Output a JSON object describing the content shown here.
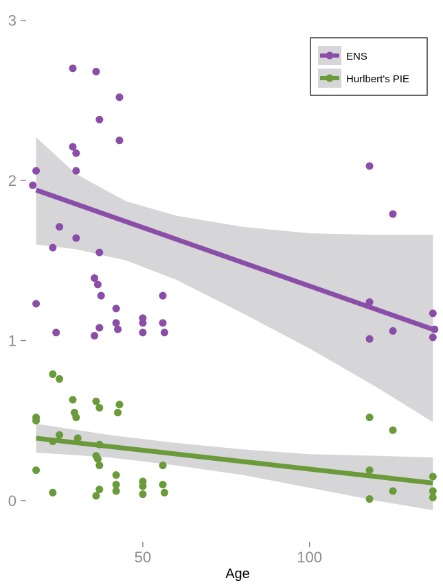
{
  "chart_data": {
    "type": "scatter",
    "xlabel": "Age",
    "ylabel": "",
    "xlim": [
      15,
      139
    ],
    "ylim": [
      -0.3,
      3.05
    ],
    "x_ticks": [
      50,
      100
    ],
    "y_ticks": [
      0,
      1,
      2,
      3
    ],
    "grid": false,
    "legend_position": "top-right",
    "series": [
      {
        "name": "ENS",
        "color": "#8a4ea8",
        "points": [
          {
            "x": 17,
            "y": 1.97
          },
          {
            "x": 18,
            "y": 2.06
          },
          {
            "x": 18,
            "y": 1.23
          },
          {
            "x": 23,
            "y": 1.58
          },
          {
            "x": 24,
            "y": 1.05
          },
          {
            "x": 25,
            "y": 1.71
          },
          {
            "x": 29,
            "y": 2.7
          },
          {
            "x": 29,
            "y": 2.21
          },
          {
            "x": 30,
            "y": 2.17
          },
          {
            "x": 30,
            "y": 1.64
          },
          {
            "x": 30,
            "y": 2.06
          },
          {
            "x": 36,
            "y": 2.68
          },
          {
            "x": 37,
            "y": 2.38
          },
          {
            "x": 37,
            "y": 1.55
          },
          {
            "x": 35.5,
            "y": 1.39
          },
          {
            "x": 36.5,
            "y": 1.35
          },
          {
            "x": 37.5,
            "y": 1.28
          },
          {
            "x": 37,
            "y": 1.08
          },
          {
            "x": 35.5,
            "y": 1.03
          },
          {
            "x": 43,
            "y": 2.52
          },
          {
            "x": 43,
            "y": 2.25
          },
          {
            "x": 42,
            "y": 1.2
          },
          {
            "x": 42,
            "y": 1.11
          },
          {
            "x": 42.5,
            "y": 1.07
          },
          {
            "x": 50,
            "y": 1.14
          },
          {
            "x": 50,
            "y": 1.11
          },
          {
            "x": 50,
            "y": 1.05
          },
          {
            "x": 56,
            "y": 1.28
          },
          {
            "x": 56,
            "y": 1.11
          },
          {
            "x": 56.5,
            "y": 1.05
          },
          {
            "x": 118,
            "y": 2.09
          },
          {
            "x": 118,
            "y": 1.24
          },
          {
            "x": 118,
            "y": 1.01
          },
          {
            "x": 125,
            "y": 1.79
          },
          {
            "x": 125,
            "y": 1.06
          },
          {
            "x": 137,
            "y": 1.17
          },
          {
            "x": 137.5,
            "y": 1.07
          },
          {
            "x": 137,
            "y": 1.02
          }
        ],
        "fit": {
          "x": [
            18,
            137
          ],
          "y": [
            1.94,
            1.07
          ]
        },
        "ci_upper": [
          {
            "x": 18,
            "y": 2.27
          },
          {
            "x": 30,
            "y": 2.04
          },
          {
            "x": 45,
            "y": 1.87
          },
          {
            "x": 60,
            "y": 1.78
          },
          {
            "x": 80,
            "y": 1.71
          },
          {
            "x": 100,
            "y": 1.67
          },
          {
            "x": 120,
            "y": 1.66
          },
          {
            "x": 137,
            "y": 1.66
          }
        ],
        "ci_lower": [
          {
            "x": 18,
            "y": 1.6
          },
          {
            "x": 30,
            "y": 1.57
          },
          {
            "x": 45,
            "y": 1.5
          },
          {
            "x": 60,
            "y": 1.38
          },
          {
            "x": 80,
            "y": 1.17
          },
          {
            "x": 100,
            "y": 0.95
          },
          {
            "x": 120,
            "y": 0.71
          },
          {
            "x": 137,
            "y": 0.49
          }
        ]
      },
      {
        "name": "Hurlbert's PIE",
        "color": "#6a9a3a",
        "points": [
          {
            "x": 18,
            "y": 0.52
          },
          {
            "x": 18,
            "y": 0.5
          },
          {
            "x": 18,
            "y": 0.19
          },
          {
            "x": 23,
            "y": 0.79
          },
          {
            "x": 23,
            "y": 0.37
          },
          {
            "x": 23,
            "y": 0.05
          },
          {
            "x": 25,
            "y": 0.76
          },
          {
            "x": 25,
            "y": 0.41
          },
          {
            "x": 29,
            "y": 0.63
          },
          {
            "x": 29.5,
            "y": 0.55
          },
          {
            "x": 30,
            "y": 0.52
          },
          {
            "x": 30.5,
            "y": 0.39
          },
          {
            "x": 36,
            "y": 0.62
          },
          {
            "x": 37,
            "y": 0.58
          },
          {
            "x": 37,
            "y": 0.35
          },
          {
            "x": 36,
            "y": 0.28
          },
          {
            "x": 36.5,
            "y": 0.26
          },
          {
            "x": 37,
            "y": 0.22
          },
          {
            "x": 37,
            "y": 0.07
          },
          {
            "x": 36,
            "y": 0.03
          },
          {
            "x": 43,
            "y": 0.6
          },
          {
            "x": 42.5,
            "y": 0.55
          },
          {
            "x": 42,
            "y": 0.16
          },
          {
            "x": 42,
            "y": 0.1
          },
          {
            "x": 42,
            "y": 0.06
          },
          {
            "x": 50,
            "y": 0.12
          },
          {
            "x": 50,
            "y": 0.09
          },
          {
            "x": 50,
            "y": 0.04
          },
          {
            "x": 56,
            "y": 0.22
          },
          {
            "x": 56,
            "y": 0.1
          },
          {
            "x": 56.5,
            "y": 0.05
          },
          {
            "x": 118,
            "y": 0.52
          },
          {
            "x": 118,
            "y": 0.19
          },
          {
            "x": 118,
            "y": 0.01
          },
          {
            "x": 125,
            "y": 0.44
          },
          {
            "x": 125,
            "y": 0.06
          },
          {
            "x": 137,
            "y": 0.15
          },
          {
            "x": 137,
            "y": 0.06
          },
          {
            "x": 137,
            "y": 0.02
          }
        ],
        "fit": {
          "x": [
            18,
            137
          ],
          "y": [
            0.39,
            0.11
          ]
        },
        "ci_upper": [
          {
            "x": 18,
            "y": 0.48
          },
          {
            "x": 40,
            "y": 0.41
          },
          {
            "x": 60,
            "y": 0.36
          },
          {
            "x": 80,
            "y": 0.32
          },
          {
            "x": 100,
            "y": 0.29
          },
          {
            "x": 120,
            "y": 0.28
          },
          {
            "x": 137,
            "y": 0.27
          }
        ],
        "ci_lower": [
          {
            "x": 18,
            "y": 0.3
          },
          {
            "x": 40,
            "y": 0.27
          },
          {
            "x": 60,
            "y": 0.22
          },
          {
            "x": 80,
            "y": 0.16
          },
          {
            "x": 100,
            "y": 0.08
          },
          {
            "x": 120,
            "y": 0.0
          },
          {
            "x": 137,
            "y": -0.06
          }
        ]
      }
    ]
  }
}
